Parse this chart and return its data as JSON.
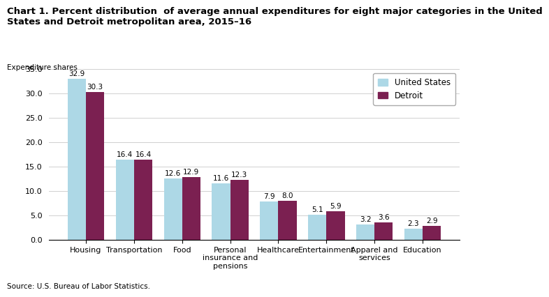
{
  "title_line1": "Chart 1. Percent distribution  of average annual expenditures for eight major categories in the United",
  "title_line2": "States and Detroit metropolitan area, 2015–16",
  "ylabel": "Expenditure shares",
  "source": "Source: U.S. Bureau of Labor Statistics.",
  "categories": [
    "Housing",
    "Transportation",
    "Food",
    "Personal\ninsurance and\npensions",
    "Healthcare",
    "Entertainment",
    "Apparel and\nservices",
    "Education"
  ],
  "us_values": [
    32.9,
    16.4,
    12.6,
    11.6,
    7.9,
    5.1,
    3.2,
    2.3
  ],
  "detroit_values": [
    30.3,
    16.4,
    12.9,
    12.3,
    8.0,
    5.9,
    3.6,
    2.9
  ],
  "us_color": "#add8e6",
  "detroit_color": "#7b2051",
  "us_label": "United States",
  "detroit_label": "Detroit",
  "ylim": [
    0,
    35
  ],
  "yticks": [
    0.0,
    5.0,
    10.0,
    15.0,
    20.0,
    25.0,
    30.0,
    35.0
  ],
  "bar_width": 0.38,
  "title_fontsize": 9.5,
  "tick_fontsize": 8,
  "value_fontsize": 7.5,
  "legend_fontsize": 8.5,
  "ylabel_fontsize": 7.5,
  "source_fontsize": 7.5
}
